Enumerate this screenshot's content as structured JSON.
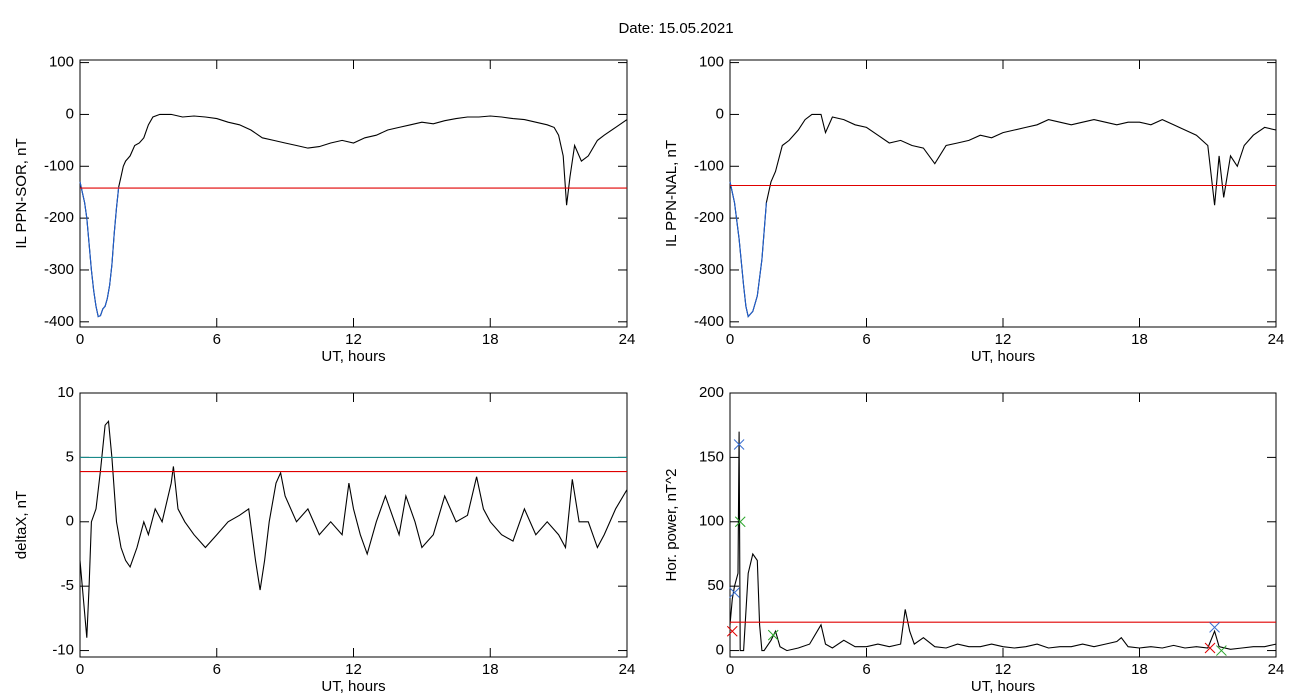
{
  "title": "Date:  15.05.2021",
  "chart_data": [
    {
      "type": "line",
      "xlabel": "UT, hours",
      "ylabel": "IL PPN-SOR, nT",
      "xlim": [
        0,
        24
      ],
      "xticks": [
        0,
        6,
        12,
        18,
        24
      ],
      "ylim": [
        -410,
        105
      ],
      "yticks": [
        -400,
        -300,
        -200,
        -100,
        0,
        100
      ],
      "series": [
        {
          "color": "#000000",
          "style": "line",
          "x": [
            0,
            0.1,
            0.2,
            0.3,
            0.4,
            0.5,
            0.6,
            0.7,
            0.8,
            0.9,
            1.0,
            1.1,
            1.2,
            1.3,
            1.4,
            1.5,
            1.6,
            1.7,
            1.8,
            1.9,
            2.0,
            2.2,
            2.4,
            2.6,
            2.8,
            3.0,
            3.2,
            3.5,
            4,
            4.5,
            5,
            5.5,
            6,
            6.5,
            7,
            7.5,
            8,
            8.5,
            9,
            9.5,
            10,
            10.5,
            11,
            11.5,
            12,
            12.5,
            13,
            13.5,
            14,
            14.5,
            15,
            15.5,
            16,
            16.5,
            17,
            17.5,
            18,
            18.5,
            19,
            19.5,
            20,
            20.5,
            20.8,
            21,
            21.2,
            21.35,
            21.5,
            21.7,
            22,
            22.3,
            22.7,
            23,
            23.5,
            24
          ],
          "values": [
            -130,
            -150,
            -170,
            -200,
            -250,
            -300,
            -340,
            -370,
            -390,
            -388,
            -375,
            -370,
            -355,
            -330,
            -290,
            -230,
            -180,
            -140,
            -120,
            -100,
            -90,
            -80,
            -60,
            -55,
            -45,
            -20,
            -5,
            0,
            0,
            -5,
            -3,
            -5,
            -8,
            -15,
            -20,
            -30,
            -45,
            -50,
            -55,
            -60,
            -65,
            -62,
            -55,
            -50,
            -55,
            -45,
            -40,
            -30,
            -25,
            -20,
            -15,
            -18,
            -12,
            -8,
            -5,
            -5,
            -3,
            -5,
            -8,
            -10,
            -15,
            -20,
            -25,
            -40,
            -80,
            -175,
            -120,
            -60,
            -90,
            -80,
            -50,
            -40,
            -25,
            -10
          ]
        },
        {
          "color": "#1f5fd0",
          "style": "line",
          "x": [
            0,
            0.1,
            0.2,
            0.3,
            0.4,
            0.5,
            0.6,
            0.7,
            0.8,
            0.9,
            1.0,
            1.1,
            1.2,
            1.3,
            1.4,
            1.5,
            1.6,
            1.7
          ],
          "values": [
            -130,
            -150,
            -170,
            -200,
            -250,
            -300,
            -340,
            -370,
            -390,
            -388,
            -375,
            -370,
            -355,
            -330,
            -290,
            -230,
            -180,
            -140
          ]
        },
        {
          "color": "#e00000",
          "style": "line",
          "x": [
            0,
            24
          ],
          "values": [
            -142,
            -142
          ]
        }
      ]
    },
    {
      "type": "line",
      "xlabel": "UT, hours",
      "ylabel": "IL PPN-NAL, nT",
      "xlim": [
        0,
        24
      ],
      "xticks": [
        0,
        6,
        12,
        18,
        24
      ],
      "ylim": [
        -410,
        105
      ],
      "yticks": [
        -400,
        -300,
        -200,
        -100,
        0,
        100
      ],
      "series": [
        {
          "color": "#000000",
          "style": "line",
          "x": [
            0,
            0.2,
            0.4,
            0.6,
            0.7,
            0.8,
            1.0,
            1.2,
            1.4,
            1.6,
            1.8,
            2.0,
            2.3,
            2.6,
            3.0,
            3.3,
            3.6,
            4.0,
            4.2,
            4.5,
            5,
            5.5,
            6,
            6.5,
            7,
            7.5,
            8,
            8.5,
            9,
            9.5,
            10,
            10.5,
            11,
            11.5,
            12,
            12.5,
            13,
            13.5,
            14,
            14.5,
            15,
            15.5,
            16,
            16.5,
            17,
            17.5,
            18,
            18.5,
            19,
            19.5,
            20,
            20.5,
            21,
            21.3,
            21.5,
            21.7,
            22,
            22.3,
            22.6,
            23,
            23.5,
            24
          ],
          "values": [
            -130,
            -170,
            -240,
            -330,
            -370,
            -390,
            -380,
            -350,
            -280,
            -170,
            -130,
            -110,
            -60,
            -50,
            -30,
            -10,
            0,
            0,
            -35,
            -5,
            -10,
            -20,
            -25,
            -40,
            -55,
            -50,
            -60,
            -65,
            -95,
            -60,
            -55,
            -50,
            -40,
            -45,
            -35,
            -30,
            -25,
            -20,
            -10,
            -15,
            -20,
            -15,
            -10,
            -15,
            -20,
            -15,
            -15,
            -20,
            -10,
            -20,
            -30,
            -40,
            -60,
            -175,
            -80,
            -160,
            -80,
            -100,
            -60,
            -40,
            -25,
            -30
          ]
        },
        {
          "color": "#1f5fd0",
          "style": "line",
          "x": [
            0,
            0.2,
            0.4,
            0.6,
            0.7,
            0.8,
            1.0,
            1.2,
            1.4,
            1.6
          ],
          "values": [
            -130,
            -170,
            -240,
            -330,
            -370,
            -390,
            -380,
            -350,
            -280,
            -170
          ]
        },
        {
          "color": "#e00000",
          "style": "line",
          "x": [
            0,
            24
          ],
          "values": [
            -137,
            -137
          ]
        }
      ]
    },
    {
      "type": "line",
      "xlabel": "UT, hours",
      "ylabel": "deltaX, nT",
      "xlim": [
        0,
        24
      ],
      "xticks": [
        0,
        6,
        12,
        18,
        24
      ],
      "ylim": [
        -10.5,
        10
      ],
      "yticks": [
        -10,
        -5,
        0,
        5,
        10
      ],
      "series": [
        {
          "color": "#000000",
          "style": "line",
          "x": [
            0,
            0.15,
            0.3,
            0.4,
            0.5,
            0.7,
            0.9,
            1.1,
            1.25,
            1.4,
            1.6,
            1.8,
            2.0,
            2.2,
            2.5,
            2.8,
            3,
            3.3,
            3.6,
            4,
            4.1,
            4.3,
            4.6,
            5,
            5.5,
            6,
            6.5,
            7,
            7.4,
            7.7,
            7.9,
            8.1,
            8.3,
            8.6,
            8.8,
            9,
            9.5,
            10,
            10.5,
            11,
            11.5,
            11.8,
            12,
            12.3,
            12.6,
            13,
            13.4,
            13.8,
            14,
            14.3,
            14.7,
            15,
            15.5,
            16,
            16.5,
            17,
            17.4,
            17.7,
            18,
            18.5,
            19,
            19.5,
            20,
            20.5,
            21,
            21.3,
            21.6,
            21.9,
            22.3,
            22.7,
            23,
            23.5,
            24
          ],
          "values": [
            -3,
            -6,
            -9,
            -5,
            0,
            1,
            4,
            7.5,
            7.8,
            5,
            0,
            -2,
            -3,
            -3.5,
            -2,
            0,
            -1,
            1,
            0,
            3,
            4.3,
            1,
            0,
            -1,
            -2,
            -1,
            0,
            0.5,
            1,
            -3,
            -5.3,
            -3,
            0,
            3,
            3.8,
            2,
            0,
            1,
            -1,
            0,
            -1,
            3,
            1,
            -1,
            -2.5,
            0,
            2,
            0,
            -1,
            2,
            0,
            -2,
            -1,
            2,
            0,
            0.5,
            3.5,
            1,
            0,
            -1,
            -1.5,
            1,
            -1,
            0,
            -1,
            -2,
            3.3,
            0,
            0,
            -2,
            -1,
            1,
            2.5
          ]
        },
        {
          "color": "#1a8a8a",
          "style": "line",
          "x": [
            0,
            24
          ],
          "values": [
            5,
            5
          ]
        },
        {
          "color": "#e00000",
          "style": "line",
          "x": [
            0,
            24
          ],
          "values": [
            3.9,
            3.9
          ]
        }
      ]
    },
    {
      "type": "line",
      "xlabel": "UT, hours",
      "ylabel": "Hor. power, nT^2",
      "xlim": [
        0,
        24
      ],
      "xticks": [
        0,
        6,
        12,
        18,
        24
      ],
      "ylim": [
        -5,
        200
      ],
      "yticks": [
        0,
        50,
        100,
        150,
        200
      ],
      "series": [
        {
          "color": "#000000",
          "style": "line",
          "x": [
            0,
            0.1,
            0.2,
            0.35,
            0.4,
            0.45,
            0.6,
            0.8,
            1.0,
            1.2,
            1.3,
            1.4,
            1.5,
            1.8,
            2.0,
            2.2,
            2.5,
            3,
            3.5,
            4,
            4.2,
            4.5,
            5,
            5.5,
            6,
            6.5,
            7,
            7.5,
            7.7,
            7.9,
            8.1,
            8.5,
            9,
            9.5,
            10,
            10.5,
            11,
            11.5,
            12,
            12.5,
            13,
            13.5,
            14,
            14.5,
            15,
            15.5,
            16,
            16.5,
            17,
            17.2,
            17.5,
            18,
            18.5,
            19,
            19.5,
            20,
            20.5,
            21,
            21.3,
            21.5,
            22,
            22.5,
            23,
            23.5,
            24
          ],
          "values": [
            20,
            40,
            50,
            60,
            170,
            0,
            0,
            60,
            75,
            70,
            20,
            0,
            0,
            8,
            15,
            3,
            0,
            2,
            5,
            20,
            5,
            2,
            8,
            3,
            3,
            5,
            3,
            5,
            32,
            15,
            5,
            10,
            3,
            2,
            5,
            3,
            3,
            5,
            3,
            2,
            3,
            5,
            2,
            3,
            3,
            5,
            3,
            5,
            7,
            10,
            3,
            2,
            3,
            2,
            4,
            2,
            3,
            2,
            15,
            3,
            1,
            2,
            3,
            3,
            5
          ]
        },
        {
          "color": "#e00000",
          "style": "line",
          "x": [
            0,
            24
          ],
          "values": [
            22,
            22
          ]
        },
        {
          "color": "#3a6fd0",
          "style": "x-markers",
          "x": [
            0.4,
            0.2,
            21.3
          ],
          "values": [
            160,
            45,
            18
          ]
        },
        {
          "color": "#2aa52a",
          "style": "x-markers",
          "x": [
            0.45,
            1.9,
            21.6
          ],
          "values": [
            100,
            12,
            0
          ]
        },
        {
          "color": "#e00000",
          "style": "x-markers",
          "x": [
            0.1,
            21.1
          ],
          "values": [
            15,
            2
          ]
        }
      ]
    }
  ]
}
